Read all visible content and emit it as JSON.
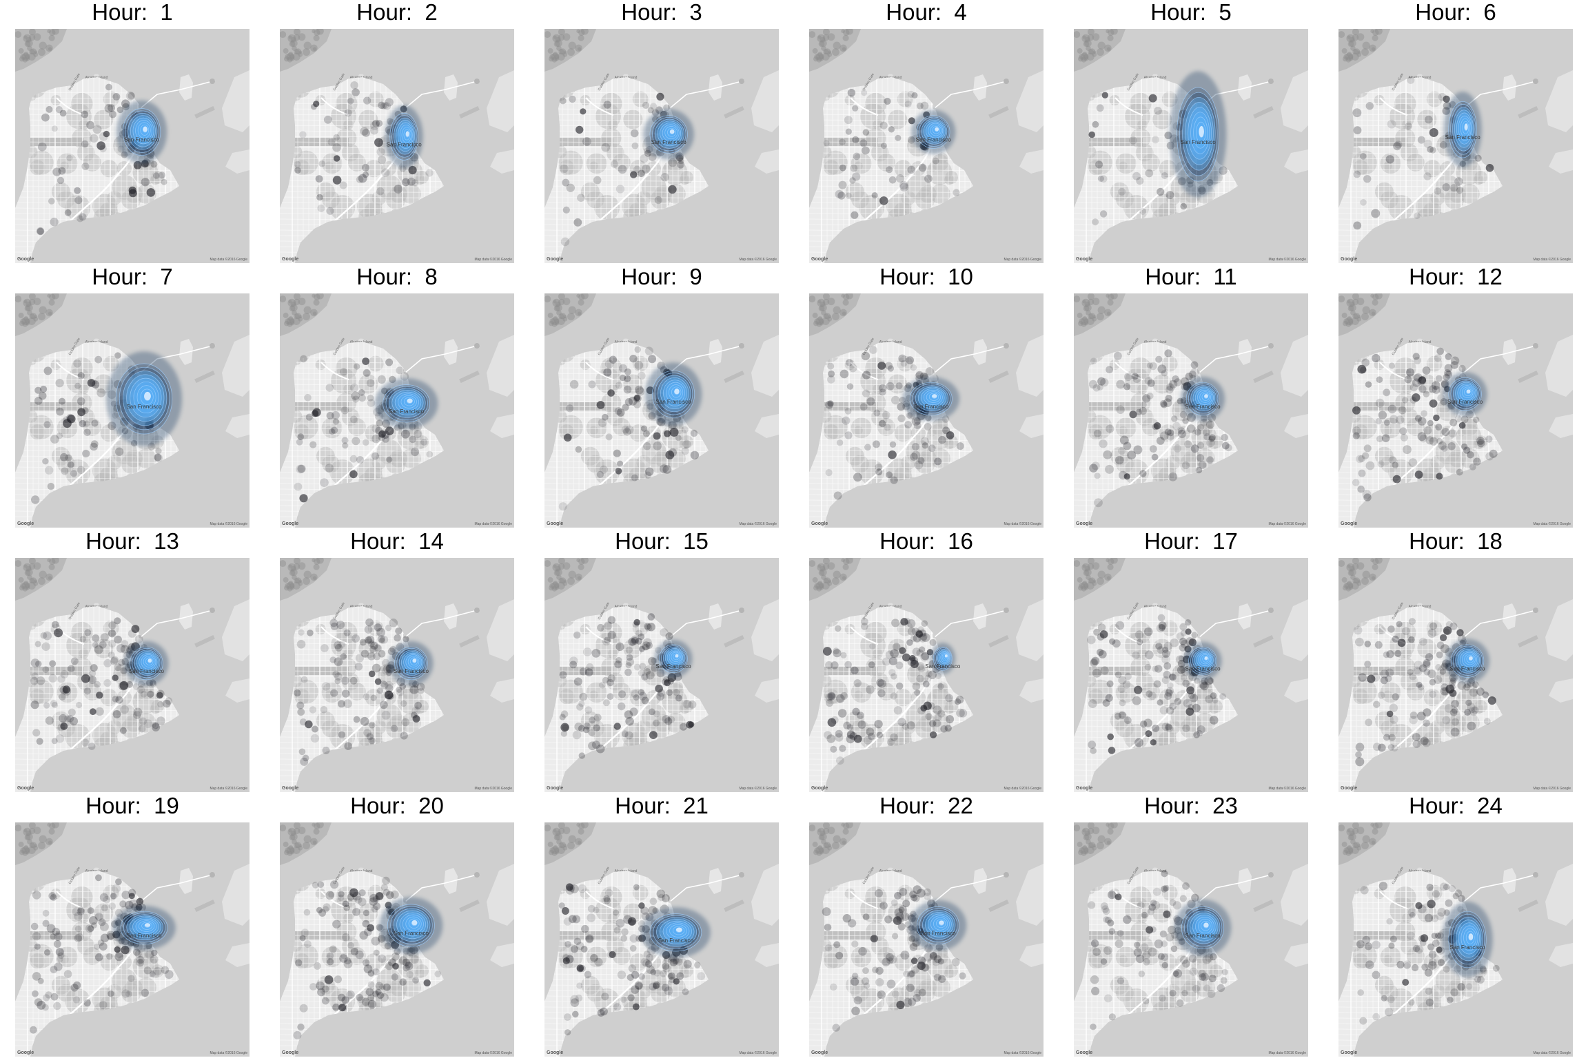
{
  "figure": {
    "title_prefix": "Hour:",
    "map_attribution": "Map data ©2016 Google",
    "map_logo": "Google",
    "map_labels": {
      "island": "Alcatraz Island",
      "bridge": "Golden Gate",
      "city": "San Francisco"
    }
  },
  "panels": [
    {
      "hour": "1",
      "title": "Hour:  1",
      "hotspot": [
        0.54,
        0.44
      ],
      "spread": [
        0.08,
        0.1
      ],
      "points": 70
    },
    {
      "hour": "2",
      "title": "Hour:  2",
      "hotspot": [
        0.53,
        0.46
      ],
      "spread": [
        0.06,
        0.1
      ],
      "points": 65
    },
    {
      "hour": "3",
      "title": "Hour:  3",
      "hotspot": [
        0.53,
        0.45
      ],
      "spread": [
        0.08,
        0.08
      ],
      "points": 55
    },
    {
      "hour": "4",
      "title": "Hour:  4",
      "hotspot": [
        0.53,
        0.44
      ],
      "spread": [
        0.07,
        0.07
      ],
      "points": 55
    },
    {
      "hour": "5",
      "title": "Hour:  5",
      "hotspot": [
        0.53,
        0.45
      ],
      "spread": [
        0.09,
        0.2
      ],
      "points": 45
    },
    {
      "hour": "6",
      "title": "Hour:  6",
      "hotspot": [
        0.53,
        0.43
      ],
      "spread": [
        0.06,
        0.12
      ],
      "points": 45
    },
    {
      "hour": "7",
      "title": "Hour:  7",
      "hotspot": [
        0.55,
        0.45
      ],
      "spread": [
        0.12,
        0.15
      ],
      "points": 75
    },
    {
      "hour": "8",
      "title": "Hour:  8",
      "hotspot": [
        0.54,
        0.47
      ],
      "spread": [
        0.1,
        0.08
      ],
      "points": 85
    },
    {
      "hour": "9",
      "title": "Hour:  9",
      "hotspot": [
        0.55,
        0.43
      ],
      "spread": [
        0.09,
        0.1
      ],
      "points": 95
    },
    {
      "hour": "10",
      "title": "Hour:  10",
      "hotspot": [
        0.52,
        0.45
      ],
      "spread": [
        0.09,
        0.07
      ],
      "points": 110
    },
    {
      "hour": "11",
      "title": "Hour:  11",
      "hotspot": [
        0.55,
        0.45
      ],
      "spread": [
        0.07,
        0.07
      ],
      "points": 120
    },
    {
      "hour": "12",
      "title": "Hour:  12",
      "hotspot": [
        0.54,
        0.43
      ],
      "spread": [
        0.07,
        0.07
      ],
      "points": 125
    },
    {
      "hour": "13",
      "title": "Hour:  13",
      "hotspot": [
        0.56,
        0.45
      ],
      "spread": [
        0.07,
        0.07
      ],
      "points": 130
    },
    {
      "hour": "14",
      "title": "Hour:  14",
      "hotspot": [
        0.56,
        0.45
      ],
      "spread": [
        0.07,
        0.07
      ],
      "points": 130
    },
    {
      "hour": "15",
      "title": "Hour:  15",
      "hotspot": [
        0.55,
        0.43
      ],
      "spread": [
        0.06,
        0.06
      ],
      "points": 130
    },
    {
      "hour": "16",
      "title": "Hour:  16",
      "hotspot": [
        0.57,
        0.43
      ],
      "spread": [
        0.04,
        0.05
      ],
      "points": 130
    },
    {
      "hour": "17",
      "title": "Hour:  17",
      "hotspot": [
        0.55,
        0.44
      ],
      "spread": [
        0.06,
        0.06
      ],
      "points": 140
    },
    {
      "hour": "18",
      "title": "Hour:  18",
      "hotspot": [
        0.55,
        0.44
      ],
      "spread": [
        0.07,
        0.07
      ],
      "points": 140
    },
    {
      "hour": "19",
      "title": "Hour:  19",
      "hotspot": [
        0.55,
        0.45
      ],
      "spread": [
        0.1,
        0.07
      ],
      "points": 145
    },
    {
      "hour": "20",
      "title": "Hour:  20",
      "hotspot": [
        0.56,
        0.44
      ],
      "spread": [
        0.1,
        0.09
      ],
      "points": 145
    },
    {
      "hour": "21",
      "title": "Hour:  21",
      "hotspot": [
        0.56,
        0.47
      ],
      "spread": [
        0.11,
        0.08
      ],
      "points": 130
    },
    {
      "hour": "22",
      "title": "Hour:  22",
      "hotspot": [
        0.55,
        0.44
      ],
      "spread": [
        0.09,
        0.08
      ],
      "points": 115
    },
    {
      "hour": "23",
      "title": "Hour:  23",
      "hotspot": [
        0.55,
        0.45
      ],
      "spread": [
        0.09,
        0.09
      ],
      "points": 105
    },
    {
      "hour": "24",
      "title": "Hour:  24",
      "hotspot": [
        0.55,
        0.5
      ],
      "spread": [
        0.08,
        0.12
      ],
      "points": 100
    }
  ],
  "colors": {
    "water": "#cfcfcf",
    "land": "#ececec",
    "land_shade": "#b9b9b9",
    "roads": "#ffffff",
    "points": "#1b1b22",
    "density_outer": "#1f3f66",
    "density_inner": "#5aaef5",
    "density_core": "#d8ecff"
  }
}
